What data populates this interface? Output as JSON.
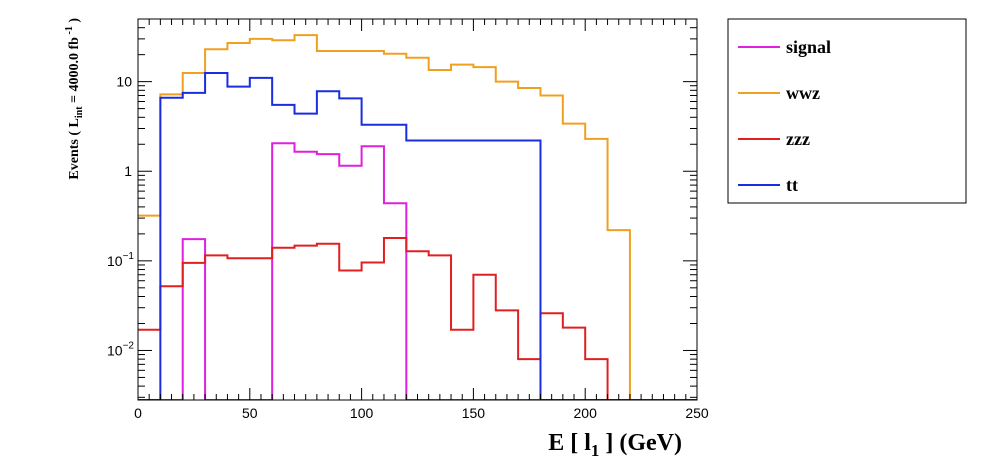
{
  "chart_data": {
    "type": "histogram-step",
    "xlabel_main": "E [ l",
    "xlabel_sub": "1",
    "xlabel_tail": " ] (GeV)",
    "ylabel_prefix": "Events  ( L",
    "ylabel_sub": "int",
    "ylabel_eq": " = 4000.0 fb",
    "ylabel_sup": " -1",
    "ylabel_close": " )",
    "xlim": [
      0,
      250
    ],
    "ylog": true,
    "ylim": [
      0.0028,
      50
    ],
    "xticks": [
      0,
      50,
      100,
      150,
      200,
      250
    ],
    "ytick_labels": [
      {
        "value": 0.01,
        "base": "10",
        "exp": "−2"
      },
      {
        "value": 0.1,
        "base": "10",
        "exp": "−1"
      },
      {
        "value": 1,
        "base": "1",
        "exp": ""
      },
      {
        "value": 10,
        "base": "10",
        "exp": ""
      }
    ],
    "bin_width": 10,
    "bin_edges_start": 0,
    "series": [
      {
        "name": "signal",
        "color": "#e020e0",
        "values": [
          0,
          0,
          0.175,
          0,
          0,
          0,
          2.05,
          1.65,
          1.55,
          1.15,
          1.9,
          0.44,
          0,
          0,
          0,
          0,
          0,
          0,
          0,
          0,
          0,
          0,
          0,
          0,
          0
        ]
      },
      {
        "name": "wwz",
        "color": "#f0a020",
        "values": [
          0.32,
          7.2,
          12.5,
          23,
          27,
          30,
          29,
          33,
          22,
          22,
          22,
          20.5,
          18.5,
          13.5,
          15.5,
          14.5,
          10,
          8.5,
          7,
          3.4,
          2.3,
          0.22,
          0,
          0,
          0
        ]
      },
      {
        "name": "zzz",
        "color": "#e02020",
        "values": [
          0.017,
          0.052,
          0.095,
          0.115,
          0.107,
          0.107,
          0.14,
          0.148,
          0.155,
          0.078,
          0.096,
          0.18,
          0.128,
          0.115,
          0.017,
          0.07,
          0.028,
          0.008,
          0.026,
          0.018,
          0.008,
          0,
          0,
          0,
          0
        ]
      },
      {
        "name": "tt",
        "color": "#1a2ee0",
        "values": [
          0,
          6.6,
          7.5,
          12.5,
          8.8,
          11,
          5.5,
          4.4,
          7.8,
          6.5,
          3.3,
          3.3,
          2.2,
          2.2,
          2.2,
          2.2,
          2.2,
          2.2,
          0,
          0,
          0,
          0,
          0,
          0,
          0
        ]
      }
    ],
    "legend": [
      "signal",
      "wwz",
      "zzz",
      "tt"
    ],
    "legend_position": "right"
  }
}
